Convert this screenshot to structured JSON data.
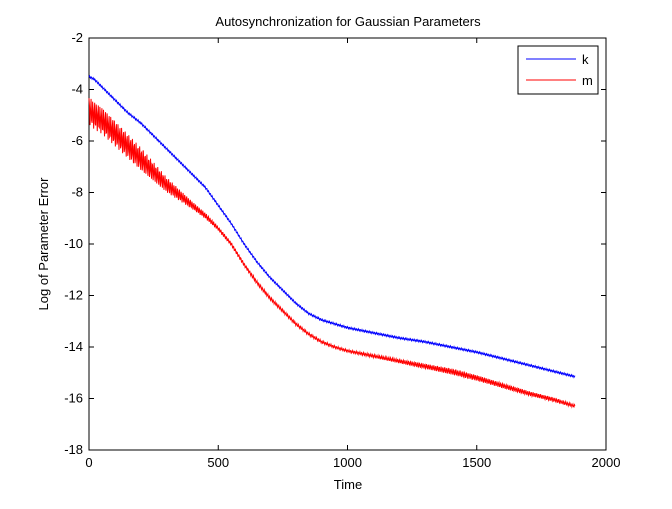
{
  "chart_data": {
    "type": "line",
    "title": "Autosynchronization for Gaussian Parameters",
    "xlabel": "Time",
    "ylabel": "Log of Parameter Error",
    "xlim": [
      0,
      2000
    ],
    "ylim": [
      -18,
      -2
    ],
    "xticks": [
      0,
      500,
      1000,
      1500,
      2000
    ],
    "yticks": [
      -18,
      -16,
      -14,
      -12,
      -10,
      -8,
      -6,
      -4,
      -2
    ],
    "grid": false,
    "legend": "top-right",
    "series": [
      {
        "name": "k",
        "color": "#0000ff",
        "x": [
          0,
          20,
          50,
          100,
          150,
          200,
          250,
          300,
          350,
          400,
          450,
          500,
          550,
          600,
          650,
          700,
          750,
          800,
          850,
          900,
          950,
          1000,
          1100,
          1200,
          1300,
          1400,
          1500,
          1600,
          1700,
          1800,
          1880
        ],
        "y": [
          -3.5,
          -3.6,
          -3.9,
          -4.4,
          -4.9,
          -5.3,
          -5.8,
          -6.3,
          -6.8,
          -7.3,
          -7.8,
          -8.5,
          -9.2,
          -10.0,
          -10.7,
          -11.3,
          -11.8,
          -12.3,
          -12.7,
          -12.95,
          -13.1,
          -13.25,
          -13.45,
          -13.65,
          -13.8,
          -14.0,
          -14.2,
          -14.45,
          -14.7,
          -14.95,
          -15.15
        ],
        "oscillation": 0.04
      },
      {
        "name": "m",
        "color": "#ff0000",
        "x": [
          0,
          20,
          50,
          100,
          150,
          200,
          250,
          300,
          350,
          400,
          450,
          500,
          550,
          600,
          650,
          700,
          750,
          800,
          850,
          900,
          950,
          1000,
          1100,
          1200,
          1300,
          1400,
          1500,
          1600,
          1700,
          1800,
          1880
        ],
        "y": [
          -4.8,
          -5.0,
          -5.2,
          -5.7,
          -6.2,
          -6.7,
          -7.2,
          -7.7,
          -8.1,
          -8.5,
          -8.9,
          -9.4,
          -10.0,
          -10.8,
          -11.5,
          -12.1,
          -12.6,
          -13.1,
          -13.5,
          -13.8,
          -14.0,
          -14.15,
          -14.35,
          -14.55,
          -14.75,
          -14.95,
          -15.2,
          -15.5,
          -15.8,
          -16.05,
          -16.3
        ],
        "oscillation_amplitude": [
          0.55,
          0.5,
          0.45,
          0.3,
          0.15,
          0.08,
          0.06,
          0.05,
          0.08,
          0.12,
          0.1,
          0.08,
          0.06
        ],
        "oscillation_amplitude_x": [
          0,
          100,
          200,
          300,
          400,
          500,
          800,
          1000,
          1200,
          1400,
          1600,
          1800,
          1880
        ]
      }
    ]
  }
}
